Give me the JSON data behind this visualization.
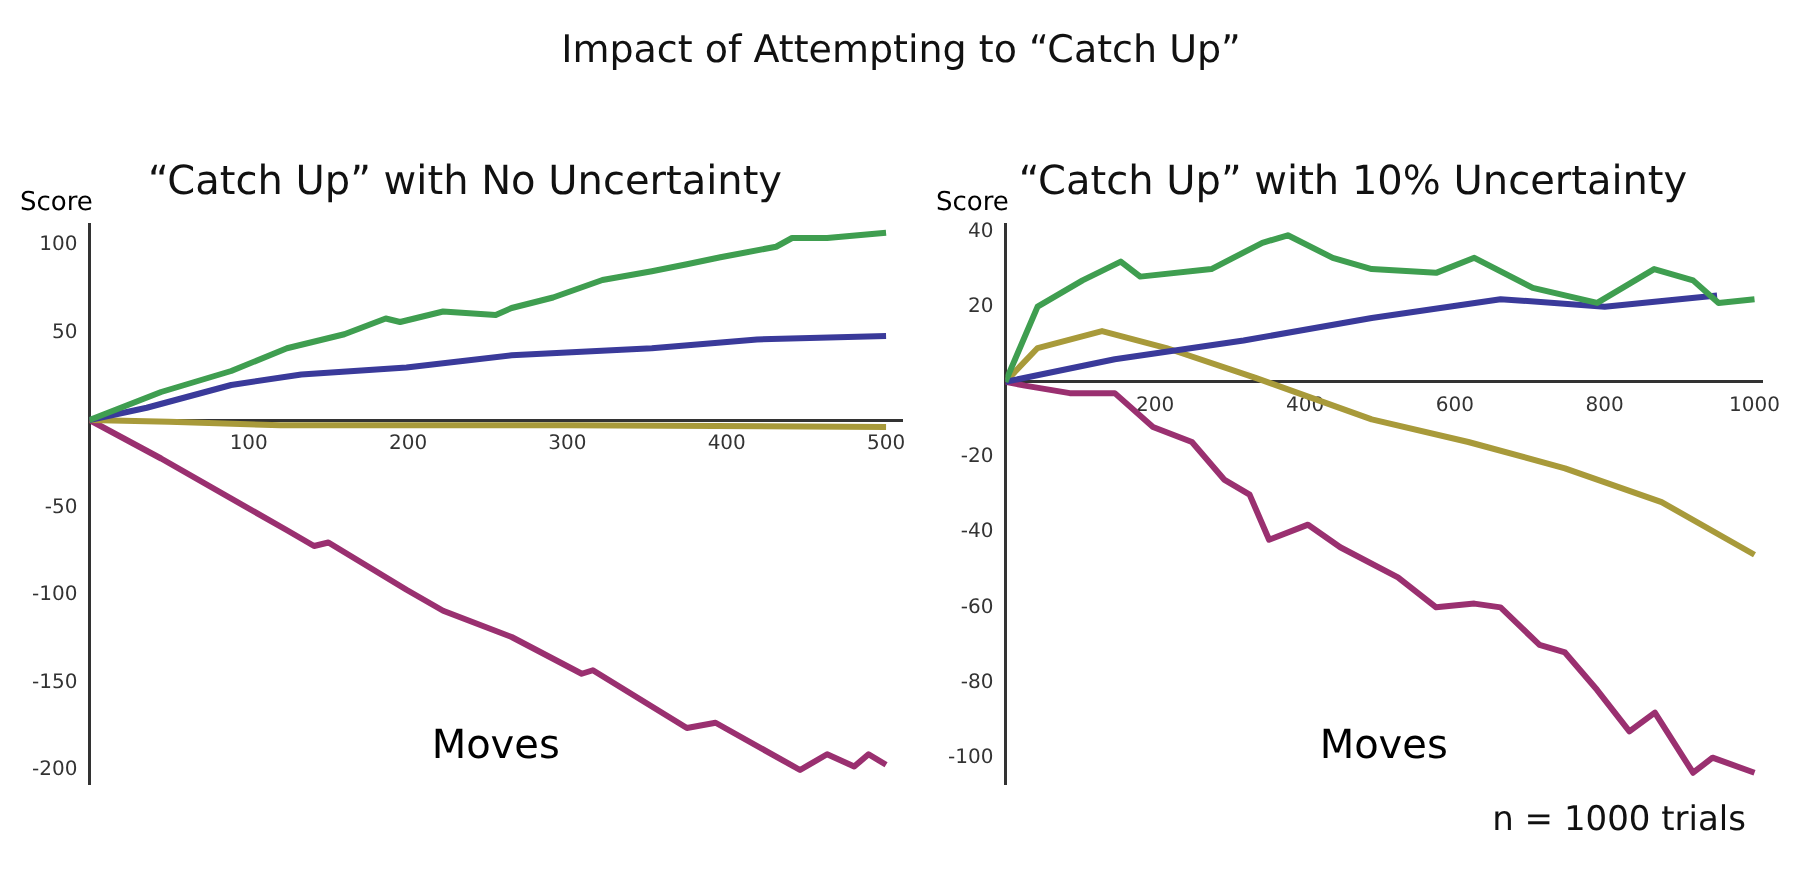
{
  "chart_data": [
    {
      "type": "line",
      "title": "“Catch Up” with No Uncertainty",
      "xlabel": "Moves",
      "ylabel": "Score",
      "annotations": [
        "Impact of Attempting to “Catch Up”"
      ],
      "xlim": [
        0,
        510
      ],
      "ylim": [
        -208,
        112
      ],
      "xticks": [
        100,
        200,
        300,
        400,
        500
      ],
      "yticks": [
        -200,
        -150,
        -100,
        -50,
        50,
        100
      ],
      "grid": false,
      "legend": false,
      "series": [
        {
          "color": "#3f9e50",
          "x": [
            0,
            45,
            89,
            124,
            160,
            186,
            195,
            222,
            255,
            265,
            291,
            322,
            353,
            375,
            396,
            431,
            441,
            463,
            500
          ],
          "values": [
            0,
            16,
            28,
            41,
            49,
            58,
            56,
            62,
            60,
            64,
            70,
            80,
            85,
            89,
            93,
            99,
            104,
            104,
            107
          ]
        },
        {
          "color": "#3a3a9a",
          "x": [
            0,
            36,
            89,
            133,
            199,
            265,
            353,
            419,
            500
          ],
          "values": [
            0,
            7,
            20,
            26,
            30,
            37,
            41,
            46,
            48
          ]
        },
        {
          "color": "#a89a3a",
          "x": [
            0,
            50,
            120,
            300,
            500
          ],
          "values": [
            0,
            -1,
            -3,
            -3,
            -4
          ]
        },
        {
          "color": "#9a3070",
          "x": [
            0,
            45,
            124,
            141,
            150,
            199,
            222,
            265,
            309,
            316,
            375,
            393,
            446,
            463,
            480,
            489,
            500
          ],
          "values": [
            0,
            -22,
            -63,
            -72,
            -70,
            -97,
            -109,
            -124,
            -145,
            -143,
            -176,
            -173,
            -200,
            -191,
            -198,
            -191,
            -197
          ]
        }
      ]
    },
    {
      "type": "line",
      "title": "“Catch Up” with 10% Uncertainty",
      "xlabel": "Moves",
      "ylabel": "Score",
      "annotations": [
        "n = 1000 trials"
      ],
      "xlim": [
        0,
        1010
      ],
      "ylim": [
        -107,
        42
      ],
      "xticks": [
        200,
        400,
        600,
        800,
        1000
      ],
      "yticks": [
        -100,
        -80,
        -60,
        -40,
        -20,
        20,
        40
      ],
      "grid": false,
      "legend": false,
      "series": [
        {
          "color": "#3f9e50",
          "x": [
            0,
            43,
            103,
            154,
            180,
            275,
            343,
            377,
            437,
            489,
            575,
            626,
            704,
            790,
            866,
            918,
            952,
            1000
          ],
          "values": [
            0,
            20,
            27,
            32,
            28,
            30,
            37,
            39,
            33,
            30,
            29,
            33,
            25,
            21,
            30,
            27,
            21,
            22
          ]
        },
        {
          "color": "#3a3a9a",
          "x": [
            0,
            146,
            318,
            489,
            661,
            800,
            950
          ],
          "values": [
            0,
            6,
            11,
            17,
            22,
            20,
            23
          ]
        },
        {
          "color": "#a89a3a",
          "x": [
            0,
            43,
            129,
            215,
            335,
            489,
            618,
            747,
            876,
            1000
          ],
          "values": [
            0,
            9,
            13.5,
            9,
            1,
            -10,
            -16,
            -23,
            -32,
            -46
          ]
        },
        {
          "color": "#9a3070",
          "x": [
            0,
            26,
            86,
            146,
            197,
            249,
            292,
            326,
            352,
            404,
            447,
            524,
            575,
            626,
            661,
            713,
            747,
            790,
            833,
            867,
            918,
            944,
            1000
          ],
          "values": [
            0,
            -1,
            -3,
            -3,
            -12,
            -16,
            -26,
            -30,
            -42,
            -38,
            -44,
            -52,
            -60,
            -59,
            -60,
            -70,
            -72,
            -82,
            -93,
            -88,
            -104,
            -100,
            -104
          ]
        }
      ]
    }
  ]
}
